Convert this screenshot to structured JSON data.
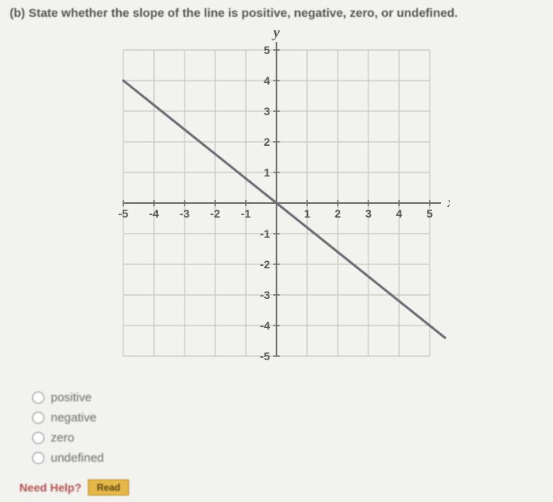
{
  "question": {
    "part": "(b)",
    "text": "State whether the slope of the line is positive, negative, zero, or undefined."
  },
  "chart": {
    "type": "line",
    "x_label": "x",
    "y_label": "y",
    "xlim": [
      -5,
      5
    ],
    "ylim": [
      -5,
      5
    ],
    "xtick_step": 1,
    "ytick_step": 1,
    "x_tick_labels": [
      "-5",
      "-4",
      "-3",
      "-2",
      "-1",
      "1",
      "2",
      "3",
      "4",
      "5"
    ],
    "y_tick_labels": [
      "-5",
      "-4",
      "-3",
      "-2",
      "-1",
      "1",
      "2",
      "3",
      "4",
      "5"
    ],
    "grid_color": "#c9c9c2",
    "axis_color": "#6f6f6a",
    "line_color": "#6f6f77",
    "line_width": 3,
    "background_color": "#f2f2ee",
    "tick_font_size": 14,
    "tick_font_weight": "bold",
    "label_font_size": 18,
    "label_font_weight": "bold",
    "line_points": [
      [
        -5,
        4
      ],
      [
        5.5,
        -4.4
      ]
    ]
  },
  "options": [
    {
      "label": "positive"
    },
    {
      "label": "negative"
    },
    {
      "label": "zero"
    },
    {
      "label": "undefined"
    }
  ],
  "footer": {
    "help_text": "Need Help?",
    "button_label": "Read"
  }
}
